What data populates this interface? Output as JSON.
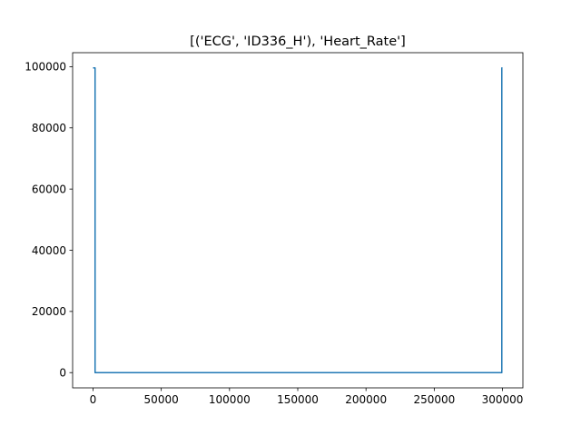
{
  "chart_data": {
    "type": "line",
    "title": "[('ECG', 'ID336_H'), 'Heart_Rate']",
    "xlabel": "",
    "ylabel": "",
    "xlim": [
      -14950,
      314950
    ],
    "ylim": [
      -4980,
      104580
    ],
    "grid": false,
    "x_ticks": [
      0,
      50000,
      100000,
      150000,
      200000,
      250000,
      300000
    ],
    "y_ticks": [
      0,
      20000,
      40000,
      60000,
      80000,
      100000
    ],
    "series": [
      {
        "color": "#1f77b4",
        "x": [
          0,
          1500,
          1500,
          2000,
          298000,
          299500,
          299500,
          300000
        ],
        "y": [
          99600,
          99600,
          0,
          0,
          0,
          0,
          99600,
          99600
        ]
      }
    ]
  }
}
